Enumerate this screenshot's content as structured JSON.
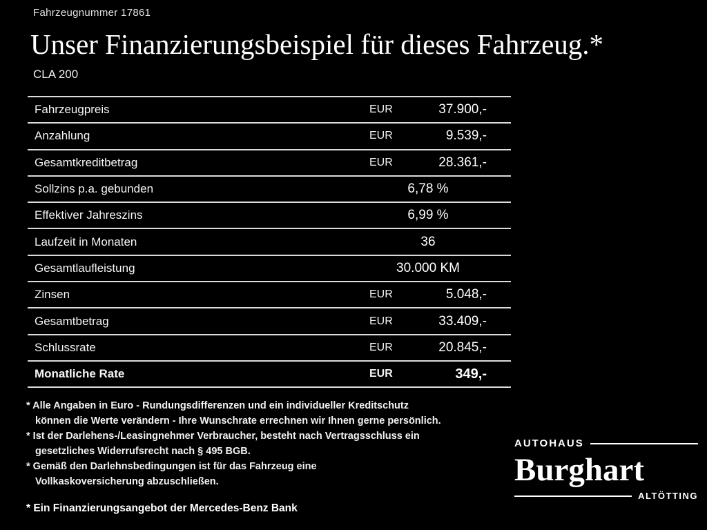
{
  "header": {
    "vehicle_number": "Fahrzeugnummer 17861",
    "title": "Unser Finanzierungsbeispiel für dieses Fahrzeug.*",
    "model": "CLA 200"
  },
  "table": {
    "rows": [
      {
        "label": "Fahrzeugpreis",
        "currency": "EUR",
        "value": "37.900,-"
      },
      {
        "label": "Anzahlung",
        "currency": "EUR",
        "value": "9.539,-"
      },
      {
        "label": "Gesamtkreditbetrag",
        "currency": "EUR",
        "value": "28.361,-"
      },
      {
        "label": "Sollzins p.a. gebunden",
        "currency": "",
        "value": "6,78 %"
      },
      {
        "label": "Effektiver Jahreszins",
        "currency": "",
        "value": "6,99 %"
      },
      {
        "label": "Laufzeit in Monaten",
        "currency": "",
        "value": "36"
      },
      {
        "label": "Gesamtlaufleistung",
        "currency": "",
        "value": "30.000 KM"
      },
      {
        "label": "Zinsen",
        "currency": "EUR",
        "value": "5.048,-"
      },
      {
        "label": "Gesamtbetrag",
        "currency": "EUR",
        "value": "33.409,-"
      },
      {
        "label": "Schlussrate",
        "currency": "EUR",
        "value": "20.845,-"
      },
      {
        "label": "Monatliche Rate",
        "currency": "EUR",
        "value": "349,-"
      }
    ]
  },
  "footnotes": [
    {
      "line1": "* Alle Angaben in Euro - Rundungsdifferenzen und ein individueller Kreditschutz",
      "line2": "können die Werte verändern - Ihre Wunschrate errechnen wir Ihnen gerne persönlich."
    },
    {
      "line1": "* Ist der Darlehens-/Leasingnehmer Verbraucher, besteht nach Vertragsschluss ein",
      "line2": "gesetzliches Widerrufsrecht nach § 495 BGB."
    },
    {
      "line1": "* Gemäß den Darlehnsbedingungen ist für das Fahrzeug eine",
      "line2": "Vollkaskoversicherung abzuschließen."
    }
  ],
  "footer": {
    "offer_text": "* Ein Finanzierungsangebot der Mercedes-Benz Bank",
    "dealer": {
      "top": "AUTOHAUS",
      "name": "Burghart",
      "bottom": "ALTÖTTING"
    }
  },
  "colors": {
    "background": "#000000",
    "text": "#ffffff",
    "rule_lines": "#dcdcdc"
  }
}
